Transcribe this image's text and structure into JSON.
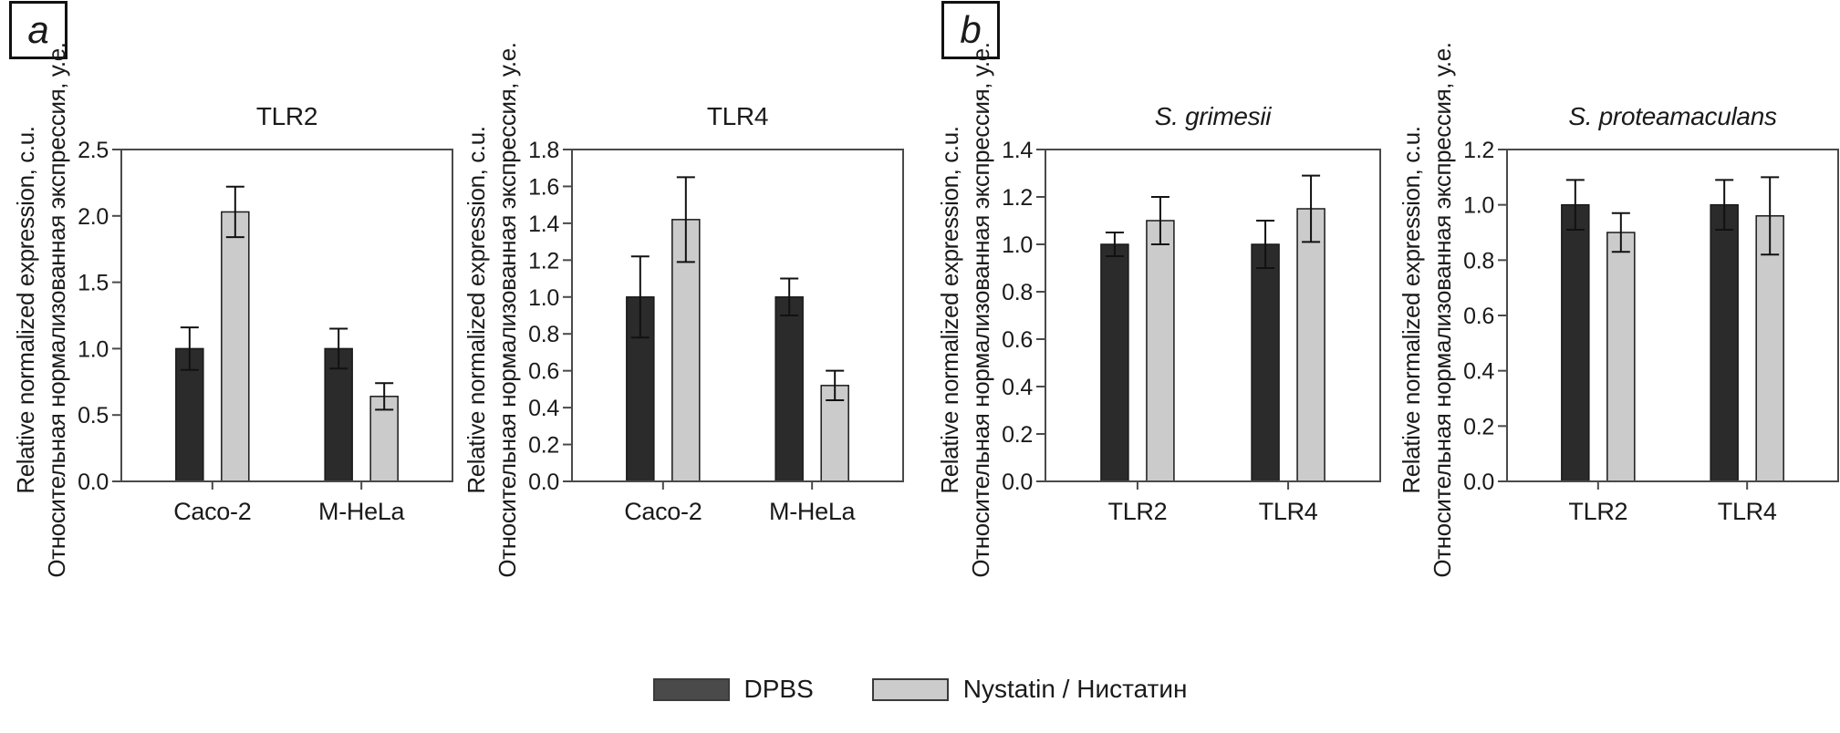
{
  "panels": [
    {
      "label": "a"
    },
    {
      "label": "b"
    }
  ],
  "colors": {
    "dpbs_bar": "#2b2b2b",
    "nystatin_bar": "#cbcbcb",
    "bar_border": "#1a1a1a",
    "frame": "#4a4a4a",
    "error_bar": "#111111",
    "text": "#1a1a1a",
    "legend_dpbs_swatch": "#4a4a4a",
    "legend_nystatin_swatch": "#cccccc"
  },
  "legend": {
    "items": [
      {
        "label": "DPBS",
        "swatch_color": "#4a4a4a"
      },
      {
        "label": "Nystatin / Нистатин",
        "swatch_color": "#cccccc"
      }
    ]
  },
  "chart_data": [
    {
      "type": "bar",
      "panel": "a",
      "title": "TLR2",
      "title_italic": false,
      "categories": [
        "Caco-2",
        "M-HeLa"
      ],
      "series": [
        {
          "name": "DPBS",
          "color": "#2b2b2b",
          "values": [
            1.0,
            1.0
          ],
          "errors": [
            0.16,
            0.15
          ]
        },
        {
          "name": "Nystatin / Нистатин",
          "color": "#cbcbcb",
          "values": [
            2.03,
            0.64
          ],
          "errors": [
            0.19,
            0.1
          ]
        }
      ],
      "ylim": [
        0,
        2.5
      ],
      "ytick_step": 0.5,
      "ytick_decimals": 1,
      "grid": false,
      "legend_position": "bottom",
      "ylabel_en": "Relative normalized expression, c.u.",
      "ylabel_ru": "Относительная нормализованная экспрессия, у.е."
    },
    {
      "type": "bar",
      "panel": "a",
      "title": "TLR4",
      "title_italic": false,
      "categories": [
        "Caco-2",
        "M-HeLa"
      ],
      "series": [
        {
          "name": "DPBS",
          "color": "#2b2b2b",
          "values": [
            1.0,
            1.0
          ],
          "errors": [
            0.22,
            0.1
          ]
        },
        {
          "name": "Nystatin / Нистатин",
          "color": "#cbcbcb",
          "values": [
            1.42,
            0.52
          ],
          "errors": [
            0.23,
            0.08
          ]
        }
      ],
      "ylim": [
        0,
        1.8
      ],
      "ytick_step": 0.2,
      "ytick_decimals": 1,
      "grid": false,
      "legend_position": "bottom",
      "ylabel_en": "Relative normalized expression, c.u.",
      "ylabel_ru": "Относительная нормализованная экспрессия, у.е."
    },
    {
      "type": "bar",
      "panel": "b",
      "title": "S. grimesii",
      "title_italic": true,
      "categories": [
        "TLR2",
        "TLR4"
      ],
      "series": [
        {
          "name": "DPBS",
          "color": "#2b2b2b",
          "values": [
            1.0,
            1.0
          ],
          "errors": [
            0.05,
            0.1
          ]
        },
        {
          "name": "Nystatin / Нистатин",
          "color": "#cbcbcb",
          "values": [
            1.1,
            1.15
          ],
          "errors": [
            0.1,
            0.14
          ]
        }
      ],
      "ylim": [
        0,
        1.4
      ],
      "ytick_step": 0.2,
      "ytick_decimals": 1,
      "grid": false,
      "legend_position": "bottom",
      "ylabel_en": "Relative normalized expression, c.u.",
      "ylabel_ru": "Относительная нормализованная экспрессия, у.е."
    },
    {
      "type": "bar",
      "panel": "b",
      "title": "S. proteamaculans",
      "title_italic": true,
      "categories": [
        "TLR2",
        "TLR4"
      ],
      "series": [
        {
          "name": "DPBS",
          "color": "#2b2b2b",
          "values": [
            1.0,
            1.0
          ],
          "errors": [
            0.09,
            0.09
          ]
        },
        {
          "name": "Nystatin / Нистатин",
          "color": "#cbcbcb",
          "values": [
            0.9,
            0.96
          ],
          "errors": [
            0.07,
            0.14
          ]
        }
      ],
      "ylim": [
        0,
        1.2
      ],
      "ytick_step": 0.2,
      "ytick_decimals": 1,
      "grid": false,
      "legend_position": "bottom",
      "ylabel_en": "Relative normalized expression, c.u.",
      "ylabel_ru": "Относительная нормализованная экспрессия, у.е."
    }
  ]
}
